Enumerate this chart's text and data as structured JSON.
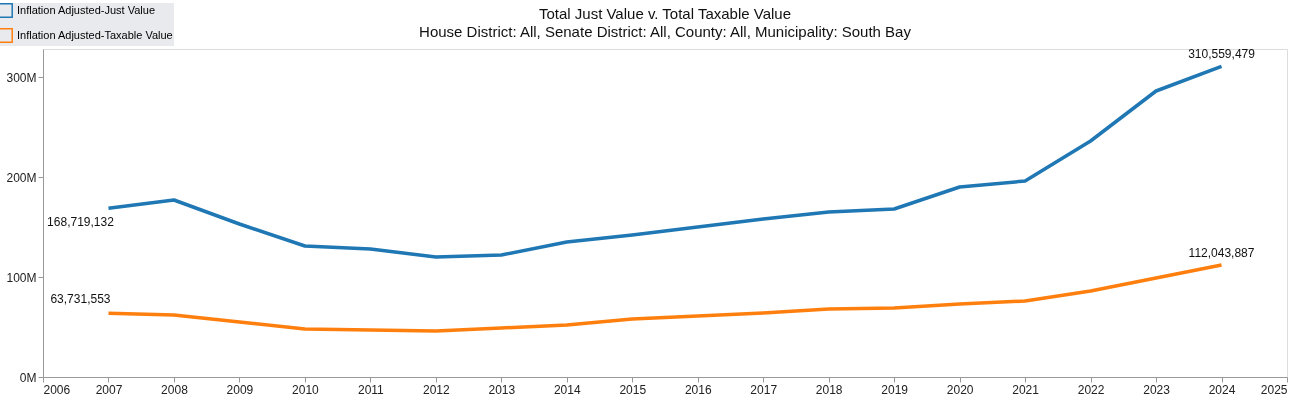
{
  "chart_data": {
    "type": "line",
    "title": "Total Just Value v. Total Taxable Value",
    "subtitle": "House District: All, Senate District: All, County: All, Municipality: South Bay",
    "x": [
      2007,
      2008,
      2009,
      2010,
      2011,
      2012,
      2013,
      2014,
      2015,
      2016,
      2017,
      2018,
      2019,
      2020,
      2021,
      2022,
      2023,
      2024
    ],
    "series": [
      {
        "name": "Inflation Adjusted-Just Value",
        "color": "#1f77b4",
        "values": [
          168719132,
          177000000,
          153000000,
          131000000,
          128000000,
          120000000,
          122000000,
          135000000,
          142000000,
          150000000,
          158000000,
          165000000,
          168000000,
          190000000,
          196000000,
          236000000,
          286000000,
          310559479
        ],
        "value_labels": [
          "168,719,132",
          null,
          null,
          null,
          null,
          null,
          null,
          null,
          null,
          null,
          null,
          null,
          null,
          null,
          null,
          null,
          null,
          "310,559,479"
        ]
      },
      {
        "name": "Inflation Adjusted-Taxable Value",
        "color": "#ff7f0e",
        "values": [
          63731553,
          62000000,
          55000000,
          48000000,
          47000000,
          46000000,
          49000000,
          52000000,
          58000000,
          61000000,
          64000000,
          68000000,
          69000000,
          73000000,
          76000000,
          86000000,
          99000000,
          112043887
        ],
        "value_labels": [
          "63,731,553",
          null,
          null,
          null,
          null,
          null,
          null,
          null,
          null,
          null,
          null,
          null,
          null,
          null,
          null,
          null,
          null,
          "112,043,887"
        ]
      }
    ],
    "xlim": [
      2006,
      2025
    ],
    "xticks": [
      2006,
      2007,
      2008,
      2009,
      2010,
      2011,
      2012,
      2013,
      2014,
      2015,
      2016,
      2017,
      2018,
      2019,
      2020,
      2021,
      2022,
      2023,
      2024,
      2025
    ],
    "ylim": [
      0,
      328000000
    ],
    "yticks": [
      {
        "value": 0,
        "label": "0M"
      },
      {
        "value": 100000000,
        "label": "100M"
      },
      {
        "value": 200000000,
        "label": "200M"
      },
      {
        "value": 300000000,
        "label": "300M"
      }
    ],
    "grid": false,
    "legend": "top left",
    "marker": "none",
    "line_style": "solid"
  }
}
